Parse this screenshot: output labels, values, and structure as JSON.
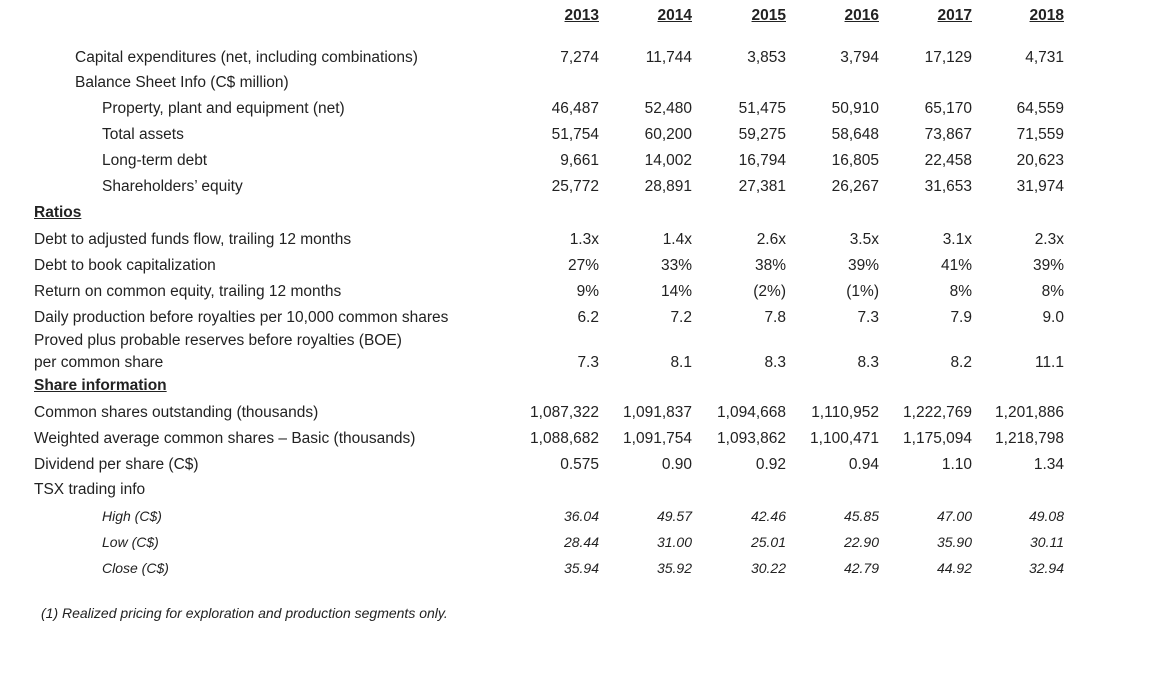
{
  "years": [
    "2013",
    "2014",
    "2015",
    "2016",
    "2017",
    "2018"
  ],
  "rows": [
    {
      "label": "Capital expenditures (net, including combinations)",
      "values": [
        "7,274",
        "11,744",
        "3,853",
        "3,794",
        "17,129",
        "4,731"
      ]
    },
    {
      "label": "Balance Sheet Info (C$ million)",
      "values": []
    },
    {
      "label": "Property, plant and equipment (net)",
      "values": [
        "46,487",
        "52,480",
        "51,475",
        "50,910",
        "65,170",
        "64,559"
      ]
    },
    {
      "label": "Total assets",
      "values": [
        "51,754",
        "60,200",
        "59,275",
        "58,648",
        "73,867",
        "71,559"
      ]
    },
    {
      "label": "Long-term debt",
      "values": [
        "9,661",
        "14,002",
        "16,794",
        "16,805",
        "22,458",
        "20,623"
      ]
    },
    {
      "label": "Shareholders’ equity",
      "values": [
        "25,772",
        "28,891",
        "27,381",
        "26,267",
        "31,653",
        "31,974"
      ]
    },
    {
      "label": "Ratios",
      "values": []
    },
    {
      "label": "Debt to adjusted funds flow, trailing 12 months",
      "values": [
        "1.3x",
        "1.4x",
        "2.6x",
        "3.5x",
        "3.1x",
        "2.3x"
      ]
    },
    {
      "label": "Debt to book capitalization",
      "values": [
        "27%",
        "33%",
        "38%",
        "39%",
        "41%",
        "39%"
      ]
    },
    {
      "label": "Return on common equity, trailing 12 months",
      "values": [
        "9%",
        "14%",
        "(2%)",
        "(1%)",
        "8%",
        "8%"
      ]
    },
    {
      "label": "Daily production before royalties per 10,000 common shares",
      "values": [
        "6.2",
        "7.2",
        "7.8",
        "7.3",
        "7.9",
        "9.0"
      ]
    },
    {
      "label": "Proved plus probable reserves before royalties (BOE)",
      "values": []
    },
    {
      "label": "per common share",
      "values": [
        "7.3",
        "8.1",
        "8.3",
        "8.3",
        "8.2",
        "11.1"
      ]
    },
    {
      "label": "Share information",
      "values": []
    },
    {
      "label": "Common shares outstanding (thousands)",
      "values": [
        "1,087,322",
        "1,091,837",
        "1,094,668",
        "1,110,952",
        "1,222,769",
        "1,201,886"
      ]
    },
    {
      "label": "Weighted average common shares – Basic (thousands)",
      "values": [
        "1,088,682",
        "1,091,754",
        "1,093,862",
        "1,100,471",
        "1,175,094",
        "1,218,798"
      ]
    },
    {
      "label": "Dividend per share (C$)",
      "values": [
        "0.575",
        "0.90",
        "0.92",
        "0.94",
        "1.10",
        "1.34"
      ]
    },
    {
      "label": "TSX trading info",
      "values": []
    },
    {
      "label": "High (C$)",
      "values": [
        "36.04",
        "49.57",
        "42.46",
        "45.85",
        "47.00",
        "49.08"
      ]
    },
    {
      "label": "Low (C$)",
      "values": [
        "28.44",
        "31.00",
        "25.01",
        "22.90",
        "35.90",
        "30.11"
      ]
    },
    {
      "label": "Close (C$)",
      "values": [
        "35.94",
        "35.92",
        "30.22",
        "42.79",
        "44.92",
        "32.94"
      ]
    }
  ],
  "footnote": "(1) Realized pricing for exploration and production segments only."
}
